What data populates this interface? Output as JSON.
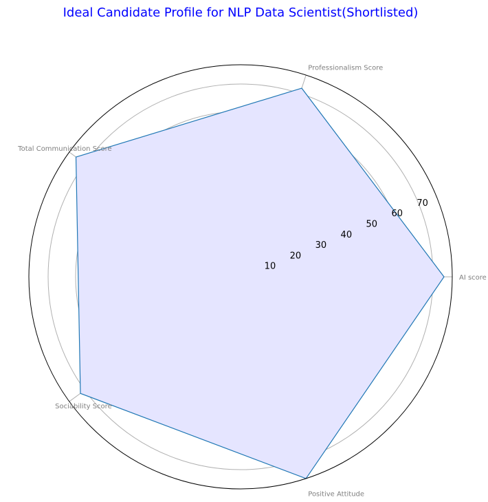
{
  "chart_data": {
    "type": "radar",
    "title": "Ideal Candidate Profile for NLP Data Scientist(Shortlisted)",
    "categories": [
      "AI score",
      "Professionalism Score",
      "Total Communication Score",
      "Sociability Score",
      "Positive Attitude"
    ],
    "values": [
      74,
      72,
      74,
      72,
      77
    ],
    "rmax": 77,
    "rticks": [
      10,
      20,
      30,
      40,
      50,
      60,
      70
    ],
    "grid": true,
    "colors": {
      "line": "#1f77b4",
      "fill": "#e5e5ff",
      "title": "#0000ff",
      "axis_label": "#808080",
      "grid": "#b0b0b0"
    }
  }
}
